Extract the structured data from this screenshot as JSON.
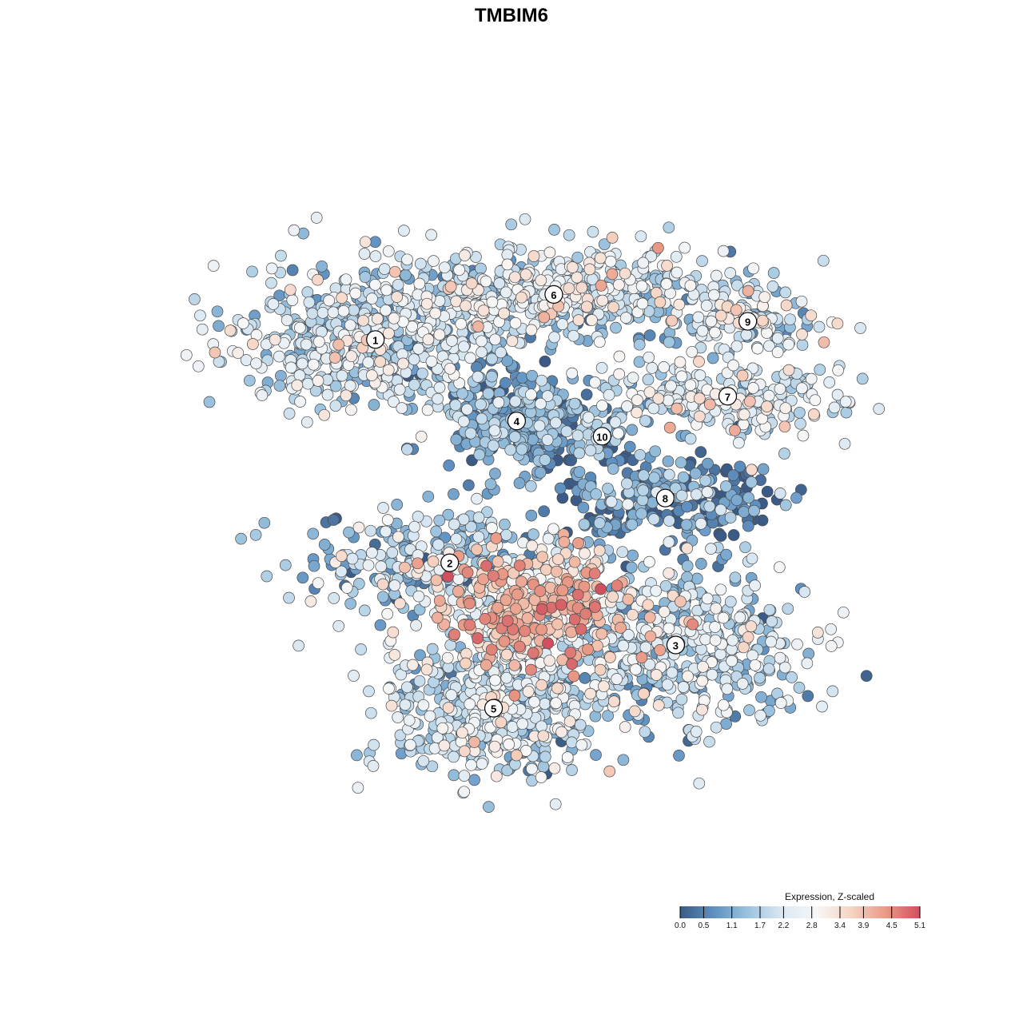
{
  "chart_data": {
    "type": "scatter",
    "title": "TMBIM6",
    "xlabel": "",
    "ylabel": "",
    "grid": false,
    "axes_visible": false,
    "legend": {
      "title": "Expression, Z-scaled",
      "placement": "bottom-right",
      "orientation": "horizontal",
      "ticks": [
        "0.0",
        "0.5",
        "1.1",
        "1.7",
        "2.2",
        "2.8",
        "3.4",
        "3.9",
        "4.5",
        "5.1"
      ],
      "range": [
        0.0,
        5.1
      ]
    },
    "colorscale": [
      "#3b5b86",
      "#5f92c2",
      "#9dc4df",
      "#dce9f3",
      "#f7f7f7",
      "#f6d3c2",
      "#e99a86",
      "#d0505f"
    ],
    "x_range": [
      0,
      100
    ],
    "y_range": [
      0,
      100
    ],
    "clusters": [
      {
        "label": "1",
        "x": 29.0,
        "y": 73.1,
        "spread": [
          9.0,
          5.2
        ],
        "n": 560,
        "mean_expr": 1.9
      },
      {
        "label": "6",
        "x": 53.0,
        "y": 79.3,
        "spread": [
          11.5,
          3.3
        ],
        "n": 560,
        "mean_expr": 2.1
      },
      {
        "label": "4",
        "x": 48.0,
        "y": 61.9,
        "spread": [
          4.6,
          3.8
        ],
        "n": 330,
        "mean_expr": 0.8
      },
      {
        "label": "10",
        "x": 59.5,
        "y": 59.8,
        "spread": [
          1.8,
          2.0
        ],
        "n": 45,
        "mean_expr": 1.4
      },
      {
        "label": "9",
        "x": 79.1,
        "y": 75.6,
        "spread": [
          4.8,
          2.2
        ],
        "n": 130,
        "mean_expr": 2.0
      },
      {
        "label": "7",
        "x": 76.4,
        "y": 65.3,
        "spread": [
          8.0,
          2.5
        ],
        "n": 260,
        "mean_expr": 2.2
      },
      {
        "label": "8",
        "x": 68.0,
        "y": 51.3,
        "spread": [
          8.0,
          2.8
        ],
        "n": 240,
        "mean_expr": 0.7
      },
      {
        "label": "2",
        "x": 39.0,
        "y": 42.4,
        "spread": [
          10.0,
          4.0
        ],
        "n": 300,
        "mean_expr": 1.5
      },
      {
        "label": "3",
        "x": 69.4,
        "y": 31.1,
        "spread": [
          8.2,
          5.6
        ],
        "n": 520,
        "mean_expr": 1.9
      },
      {
        "label": "5",
        "x": 44.9,
        "y": 22.4,
        "spread": [
          7.0,
          4.6
        ],
        "n": 520,
        "mean_expr": 1.9
      },
      {
        "label": "",
        "x": 50.0,
        "y": 36.0,
        "spread": [
          7.0,
          4.0
        ],
        "n": 420,
        "mean_expr": 3.4
      }
    ]
  }
}
